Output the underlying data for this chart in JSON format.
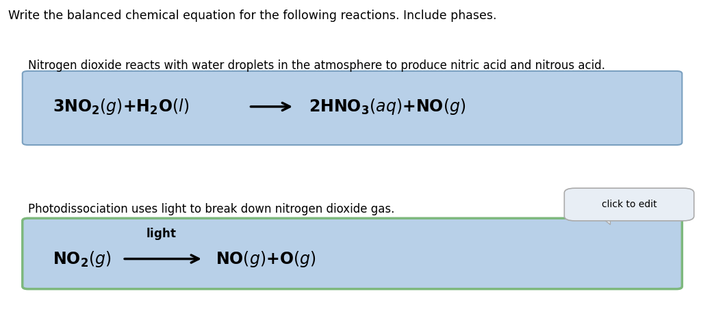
{
  "background_color": "#ffffff",
  "title_text": "Write the balanced chemical equation for the following reactions. Include phases.",
  "title_fontsize": 12.5,
  "reaction1_desc": "Nitrogen dioxide reacts with water droplets in the atmosphere to produce nitric acid and nitrous acid.",
  "reaction1_desc_fontsize": 12,
  "box1_facecolor": "#b8d0e8",
  "box1_edgecolor": "#7aa0c0",
  "box2_facecolor": "#b8d0e8",
  "box2_edgecolor": "#7db87d",
  "reaction2_desc": "Photodissociation uses light to break down nitrogen dioxide gas.",
  "reaction2_desc_fontsize": 12,
  "eq_fontsize": 17,
  "eq1_reactants": "$\\mathbf{3NO_2}\\mathit{(g)}\\mathbf{+ H_2O}\\mathit{(l)}$",
  "eq1_products": "$\\mathbf{2HNO_3}\\mathit{(aq)}\\mathbf{+ NO}\\mathit{(g)}$",
  "eq2_reactant": "$\\mathbf{NO_2}\\mathit{(g)}$",
  "eq2_products": "$\\mathbf{NO}\\mathit{(g)}\\mathbf{+ O}\\mathit{(g)}$",
  "light_label": "$\\mathbf{light}$",
  "click_text": "click to edit"
}
